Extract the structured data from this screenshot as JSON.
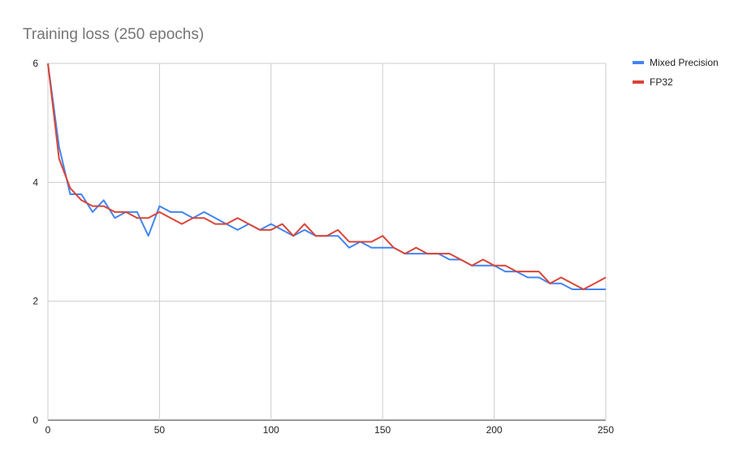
{
  "chart_data": {
    "type": "line",
    "title": "Training loss (250 epochs)",
    "xlabel": "",
    "ylabel": "",
    "xlim": [
      0,
      250
    ],
    "ylim": [
      0,
      6
    ],
    "x_ticks": [
      0,
      50,
      100,
      150,
      200,
      250
    ],
    "y_ticks": [
      0,
      2,
      4,
      6
    ],
    "grid": true,
    "legend_position": "top-right",
    "series": [
      {
        "name": "Mixed Precision",
        "color": "#4285F4",
        "x": [
          0,
          5,
          10,
          15,
          20,
          25,
          30,
          35,
          40,
          45,
          50,
          55,
          60,
          65,
          70,
          75,
          80,
          85,
          90,
          95,
          100,
          105,
          110,
          115,
          120,
          125,
          130,
          135,
          140,
          145,
          150,
          155,
          160,
          165,
          170,
          175,
          180,
          185,
          190,
          195,
          200,
          205,
          210,
          215,
          220,
          225,
          230,
          235,
          240,
          245,
          250
        ],
        "y": [
          6.0,
          4.6,
          3.8,
          3.8,
          3.5,
          3.7,
          3.4,
          3.5,
          3.5,
          3.1,
          3.6,
          3.5,
          3.5,
          3.4,
          3.5,
          3.4,
          3.3,
          3.2,
          3.3,
          3.2,
          3.3,
          3.2,
          3.1,
          3.2,
          3.1,
          3.1,
          3.1,
          2.9,
          3.0,
          2.9,
          2.9,
          2.9,
          2.8,
          2.8,
          2.8,
          2.8,
          2.7,
          2.7,
          2.6,
          2.6,
          2.6,
          2.5,
          2.5,
          2.4,
          2.4,
          2.3,
          2.3,
          2.2,
          2.2,
          2.2,
          2.2
        ]
      },
      {
        "name": "FP32",
        "color": "#DB4437",
        "x": [
          0,
          5,
          10,
          15,
          20,
          25,
          30,
          35,
          40,
          45,
          50,
          55,
          60,
          65,
          70,
          75,
          80,
          85,
          90,
          95,
          100,
          105,
          110,
          115,
          120,
          125,
          130,
          135,
          140,
          145,
          150,
          155,
          160,
          165,
          170,
          175,
          180,
          185,
          190,
          195,
          200,
          205,
          210,
          215,
          220,
          225,
          230,
          235,
          240,
          245,
          250
        ],
        "y": [
          6.0,
          4.4,
          3.9,
          3.7,
          3.6,
          3.6,
          3.5,
          3.5,
          3.4,
          3.4,
          3.5,
          3.4,
          3.3,
          3.4,
          3.4,
          3.3,
          3.3,
          3.4,
          3.3,
          3.2,
          3.2,
          3.3,
          3.1,
          3.3,
          3.1,
          3.1,
          3.2,
          3.0,
          3.0,
          3.0,
          3.1,
          2.9,
          2.8,
          2.9,
          2.8,
          2.8,
          2.8,
          2.7,
          2.6,
          2.7,
          2.6,
          2.6,
          2.5,
          2.5,
          2.5,
          2.3,
          2.4,
          2.3,
          2.2,
          2.3,
          2.4
        ]
      }
    ]
  }
}
